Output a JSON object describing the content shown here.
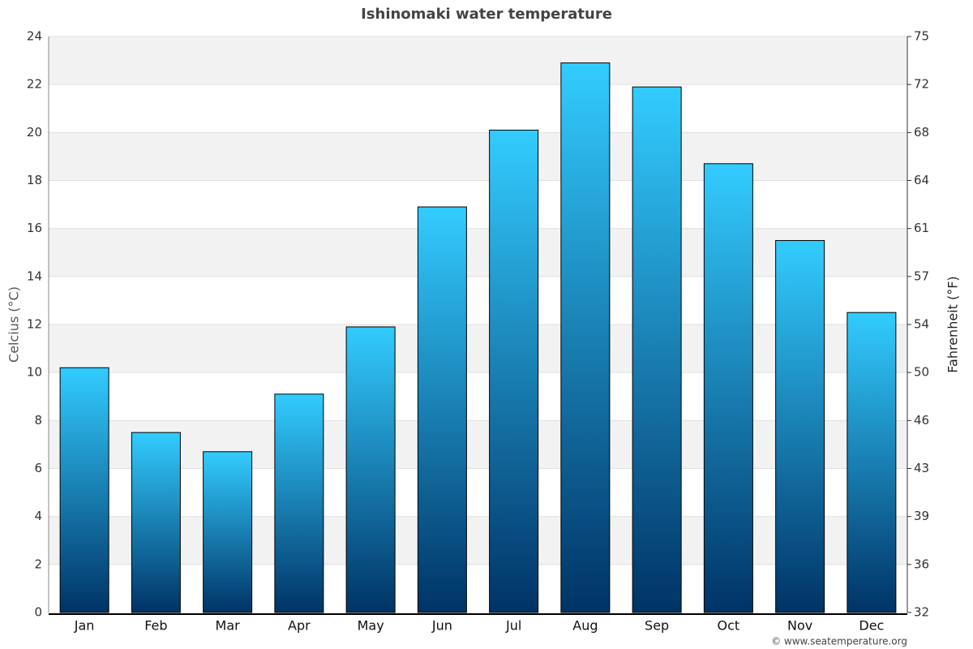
{
  "chart_data": {
    "type": "bar",
    "title": "Ishinomaki water temperature",
    "categories": [
      "Jan",
      "Feb",
      "Mar",
      "Apr",
      "May",
      "Jun",
      "Jul",
      "Aug",
      "Sep",
      "Oct",
      "Nov",
      "Dec"
    ],
    "values": [
      10.2,
      7.5,
      6.7,
      9.1,
      11.9,
      16.9,
      20.1,
      22.9,
      21.9,
      18.7,
      15.5,
      12.5
    ],
    "gradient": [
      "#33ccff",
      "#003366"
    ],
    "ylabel": "Celcius (°C)",
    "y2label": "Fahrenheit (°F)",
    "ylim": [
      0,
      24
    ],
    "yticks": [
      0,
      2,
      4,
      6,
      8,
      10,
      12,
      14,
      16,
      18,
      20,
      22,
      24
    ],
    "y2lim": [
      32,
      75.2
    ],
    "y2ticks": [
      32,
      {
        "value": 35.6,
        "label": "36"
      },
      {
        "value": 39.2,
        "label": "39"
      },
      {
        "value": 42.8,
        "label": "43"
      },
      {
        "value": 46.4,
        "label": "46"
      },
      50,
      {
        "value": 53.6,
        "label": "54"
      },
      {
        "value": 57.2,
        "label": "57"
      },
      {
        "value": 60.8,
        "label": "61"
      },
      {
        "value": 64.4,
        "label": "64"
      },
      68,
      {
        "value": 71.6,
        "label": "72"
      },
      {
        "value": 75.2,
        "label": "75"
      }
    ],
    "grid": true,
    "banded": true,
    "source": "© www.seatemperature.org"
  }
}
